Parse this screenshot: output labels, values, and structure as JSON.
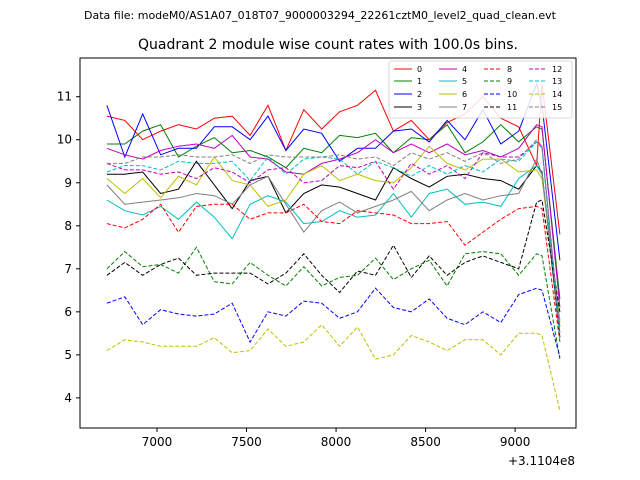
{
  "suptitle": "Data file: modeM0/AS1A07_018T07_9000003294_22261cztM0_level2_quad_clean.evt",
  "chart_data": {
    "type": "line",
    "title": "Quadrant 2 module wise count rates with 100.0s bins.",
    "xlabel": "",
    "ylabel": "",
    "x_offset_label": "+3.1104e8",
    "x_display_range": [
      6570,
      9340
    ],
    "ylim": [
      3.3,
      11.9
    ],
    "x_ticks": [
      7000,
      7500,
      8000,
      8500,
      9000
    ],
    "y_ticks": [
      4,
      5,
      6,
      7,
      8,
      9,
      10,
      11
    ],
    "x": [
      6720,
      6820,
      6920,
      7020,
      7120,
      7220,
      7320,
      7420,
      7520,
      7620,
      7720,
      7820,
      7920,
      8020,
      8120,
      8220,
      8320,
      8420,
      8520,
      8620,
      8720,
      8820,
      8920,
      9020,
      9120,
      9150,
      9250
    ],
    "grid": false,
    "legend_position": "upper right",
    "series": [
      {
        "name": "0",
        "color": "#ff0000",
        "dash": "solid",
        "values": [
          10.55,
          10.45,
          10.0,
          10.2,
          10.35,
          10.25,
          10.5,
          10.55,
          10.1,
          10.8,
          9.75,
          10.7,
          10.25,
          10.65,
          10.8,
          11.15,
          10.2,
          10.45,
          10.0,
          10.4,
          10.6,
          11.0,
          10.5,
          10.3,
          9.4,
          11.3,
          7.8
        ]
      },
      {
        "name": "1",
        "color": "#008000",
        "dash": "solid",
        "values": [
          9.9,
          9.9,
          10.2,
          10.35,
          9.6,
          9.85,
          10.05,
          9.7,
          9.75,
          9.6,
          9.35,
          9.8,
          9.7,
          10.1,
          10.05,
          10.15,
          9.7,
          10.05,
          10.0,
          10.35,
          9.7,
          9.95,
          10.35,
          9.95,
          10.3,
          10.25,
          6.3
        ]
      },
      {
        "name": "2",
        "color": "#0000ff",
        "dash": "solid",
        "values": [
          10.8,
          9.6,
          10.6,
          9.65,
          9.8,
          9.8,
          10.3,
          10.3,
          10.0,
          10.55,
          9.75,
          10.25,
          10.15,
          9.5,
          9.8,
          9.8,
          10.2,
          10.25,
          9.95,
          10.45,
          10.0,
          10.7,
          9.9,
          10.2,
          11.3,
          10.8,
          7.2
        ]
      },
      {
        "name": "3",
        "color": "#000000",
        "dash": "solid",
        "values": [
          9.2,
          9.2,
          9.25,
          8.75,
          8.85,
          9.5,
          8.95,
          8.4,
          9.05,
          9.15,
          8.3,
          8.75,
          8.95,
          8.9,
          8.75,
          8.6,
          9.35,
          9.1,
          8.9,
          9.15,
          9.2,
          9.1,
          9.05,
          8.85,
          9.4,
          9.25,
          5.4
        ]
      },
      {
        "name": "4",
        "color": "#bf00bf",
        "dash": "solid",
        "values": [
          9.8,
          9.65,
          9.55,
          9.75,
          9.85,
          9.9,
          9.8,
          10.1,
          9.6,
          9.55,
          9.25,
          9.2,
          9.45,
          9.55,
          9.7,
          10.0,
          9.7,
          9.9,
          9.7,
          9.9,
          9.65,
          9.75,
          9.6,
          9.8,
          10.35,
          10.3,
          6.1
        ]
      },
      {
        "name": "5",
        "color": "#00bfbf",
        "dash": "solid",
        "values": [
          8.6,
          8.35,
          8.25,
          8.45,
          8.15,
          8.55,
          8.2,
          7.7,
          8.5,
          8.7,
          8.55,
          8.05,
          8.1,
          8.35,
          8.2,
          8.25,
          8.75,
          8.2,
          8.75,
          8.85,
          8.5,
          8.55,
          8.45,
          9.1,
          9.4,
          9.2,
          5.8
        ]
      },
      {
        "name": "6",
        "color": "#bfbf00",
        "dash": "solid",
        "values": [
          9.1,
          8.75,
          9.1,
          8.65,
          9.15,
          8.95,
          9.6,
          9.05,
          8.95,
          8.45,
          8.6,
          9.2,
          9.4,
          9.05,
          9.2,
          9.05,
          9.0,
          9.35,
          9.85,
          9.45,
          9.3,
          9.55,
          9.55,
          9.25,
          9.3,
          9.1,
          5.75
        ]
      },
      {
        "name": "7",
        "color": "#808080",
        "dash": "solid",
        "values": [
          8.95,
          8.5,
          8.55,
          8.6,
          8.65,
          8.75,
          8.7,
          8.5,
          8.95,
          9.15,
          8.5,
          7.85,
          8.35,
          8.55,
          8.3,
          8.45,
          8.6,
          8.8,
          8.35,
          8.6,
          8.75,
          8.6,
          8.7,
          8.75,
          9.55,
          9.2,
          5.65
        ]
      },
      {
        "name": "8",
        "color": "#ff0000",
        "dash": "dashed",
        "values": [
          8.05,
          7.95,
          8.15,
          8.5,
          7.85,
          8.45,
          8.5,
          8.5,
          8.15,
          8.3,
          8.3,
          8.5,
          8.1,
          8.05,
          8.35,
          8.3,
          8.25,
          8.05,
          8.05,
          8.1,
          7.55,
          7.85,
          8.15,
          8.4,
          8.45,
          8.4,
          5.3
        ]
      },
      {
        "name": "9",
        "color": "#008000",
        "dash": "dashed",
        "values": [
          7.0,
          7.4,
          7.05,
          7.1,
          6.9,
          7.5,
          6.7,
          6.65,
          7.15,
          6.85,
          6.6,
          7.05,
          6.6,
          6.8,
          6.85,
          7.25,
          6.75,
          7.0,
          7.2,
          6.6,
          7.35,
          7.4,
          7.35,
          6.85,
          7.35,
          7.3,
          4.9
        ]
      },
      {
        "name": "10",
        "color": "#0000ff",
        "dash": "dashed",
        "values": [
          6.2,
          6.35,
          5.7,
          6.05,
          5.95,
          5.9,
          5.95,
          6.2,
          5.3,
          6.0,
          5.9,
          6.25,
          6.2,
          5.85,
          6.0,
          6.55,
          6.1,
          6.0,
          6.3,
          5.85,
          5.7,
          6.0,
          5.75,
          6.4,
          6.55,
          6.5,
          4.95
        ]
      },
      {
        "name": "11",
        "color": "#000000",
        "dash": "dashed",
        "values": [
          6.85,
          7.15,
          6.85,
          7.1,
          7.25,
          6.85,
          6.9,
          6.9,
          6.9,
          6.65,
          6.9,
          7.35,
          6.85,
          6.45,
          6.95,
          6.85,
          7.55,
          6.8,
          7.3,
          6.85,
          7.15,
          7.3,
          7.15,
          7.0,
          8.55,
          8.6,
          6.0
        ]
      },
      {
        "name": "12",
        "color": "#bf00bf",
        "dash": "dashed",
        "values": [
          9.45,
          9.3,
          9.3,
          9.2,
          9.25,
          9.1,
          9.35,
          9.25,
          9.0,
          9.3,
          9.35,
          9.0,
          9.05,
          9.4,
          9.35,
          9.5,
          8.85,
          9.45,
          9.2,
          9.4,
          9.1,
          9.7,
          9.6,
          9.6,
          9.95,
          9.85,
          5.5
        ]
      },
      {
        "name": "13",
        "color": "#00bfbf",
        "dash": "dashed",
        "values": [
          9.25,
          9.4,
          9.4,
          9.3,
          9.5,
          9.45,
          9.45,
          9.5,
          9.05,
          9.6,
          9.2,
          9.55,
          9.6,
          9.55,
          9.2,
          9.5,
          9.35,
          9.15,
          9.4,
          9.2,
          9.4,
          9.25,
          9.55,
          9.5,
          9.95,
          9.8,
          5.3
        ]
      },
      {
        "name": "14",
        "color": "#bfbf00",
        "dash": "dashed",
        "values": [
          5.1,
          5.35,
          5.3,
          5.2,
          5.2,
          5.2,
          5.4,
          5.05,
          5.1,
          5.6,
          5.2,
          5.3,
          5.7,
          5.2,
          5.65,
          4.9,
          5.0,
          5.45,
          5.3,
          5.1,
          5.35,
          5.35,
          5.0,
          5.5,
          5.5,
          5.45,
          3.7
        ]
      },
      {
        "name": "15",
        "color": "#808080",
        "dash": "dashed",
        "values": [
          9.45,
          9.45,
          9.6,
          9.6,
          9.65,
          9.6,
          9.6,
          9.65,
          9.45,
          9.65,
          9.6,
          9.6,
          9.6,
          9.65,
          9.55,
          9.6,
          9.4,
          9.7,
          9.55,
          9.7,
          9.5,
          9.7,
          9.45,
          9.55,
          10.0,
          9.85,
          5.5
        ]
      }
    ]
  }
}
